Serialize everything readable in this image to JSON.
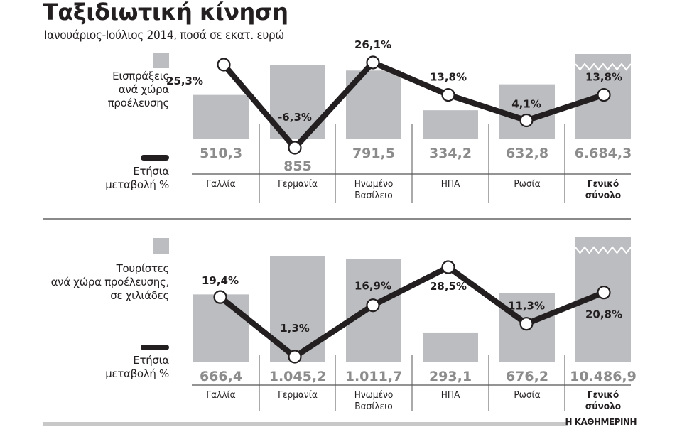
{
  "header": {
    "title": "Ταξιδιωτική κίνηση",
    "subtitle": "Ιανουάριος-Ιούλιος 2014, ποσά σε εκατ. ευρώ"
  },
  "top_chart": {
    "legend_bars": "Εισπράξεις ανά χώρα προέλευσης",
    "legend_bars_lines": [
      "Εισπράξεις",
      "ανά χώρα",
      "προέλευσης"
    ],
    "legend_line_lines": [
      "Ετήσια",
      "μεταβολή %"
    ]
  },
  "bottom_chart": {
    "legend_bars": "Τουρίστες ανά χώρα προέλευσης, σε χιλιάδες",
    "legend_bars_lines": [
      "Τουρίστες",
      "ανά χώρα προέλευσης,",
      "σε χιλιάδες"
    ],
    "legend_line_lines": [
      "Ετήσια",
      "μεταβολή %"
    ]
  },
  "footer": {
    "brand": "Η ΚΑΘΗΜΕΡΙΝΗ"
  },
  "colors": {
    "bar": "#bcbdc0",
    "bar_value_text": "#8c8c8c",
    "line": "#231f20",
    "marker_fill": "#ffffff",
    "text": "#231f20"
  },
  "chart_data": [
    {
      "type": "bar+line",
      "title": "Ταξιδιωτική κίνηση",
      "subtitle": "Ιανουάριος-Ιούλιος 2014, ποσά σε εκατ. ευρώ",
      "categories": [
        "Γαλλία",
        "Γερμανία",
        "Ηνωμένο Βασίλειο",
        "ΗΠΑ",
        "Ρωσία",
        "Γενικό σύνολο"
      ],
      "category_lines": [
        [
          "Γαλλία"
        ],
        [
          "Γερμανία"
        ],
        [
          "Ηνωμένο",
          "Βασίλειο"
        ],
        [
          "ΗΠΑ"
        ],
        [
          "Ρωσία"
        ],
        [
          "Γενικό",
          "σύνολο"
        ]
      ],
      "series": [
        {
          "name": "Εισπράξεις ανά χώρα προέλευσης",
          "kind": "bar",
          "values": [
            510.3,
            855,
            791.5,
            334.2,
            632.8,
            6684.3
          ],
          "labels": [
            "510,3",
            "855",
            "791,5",
            "334,2",
            "632,8",
            "6.684,3"
          ],
          "broken_axis_last": true
        },
        {
          "name": "Ετήσια μεταβολή %",
          "kind": "line",
          "values": [
            25.3,
            -6.3,
            26.1,
            13.8,
            4.1,
            13.8
          ],
          "labels": [
            "25,3%",
            "-6,3%",
            "26,1%",
            "13,8%",
            "4,1%",
            "13,8%"
          ]
        }
      ],
      "xlabel": "",
      "ylabel": "",
      "grid": false,
      "legend_position": "left"
    },
    {
      "type": "bar+line",
      "title": "Τουρίστες ανά χώρα προέλευσης, σε χιλιάδες",
      "categories": [
        "Γαλλία",
        "Γερμανία",
        "Ηνωμένο Βασίλειο",
        "ΗΠΑ",
        "Ρωσία",
        "Γενικό σύνολο"
      ],
      "category_lines": [
        [
          "Γαλλία"
        ],
        [
          "Γερμανία"
        ],
        [
          "Ηνωμένο",
          "Βασίλειο"
        ],
        [
          "ΗΠΑ"
        ],
        [
          "Ρωσία"
        ],
        [
          "Γενικό",
          "σύνολο"
        ]
      ],
      "series": [
        {
          "name": "Τουρίστες ανά χώρα προέλευσης, σε χιλιάδες",
          "kind": "bar",
          "values": [
            666.4,
            1045.2,
            1011.7,
            293.1,
            676.2,
            10486.9
          ],
          "labels": [
            "666,4",
            "1.045,2",
            "1.011,7",
            "293,1",
            "676,2",
            "10.486,9"
          ],
          "broken_axis_last": true
        },
        {
          "name": "Ετήσια μεταβολή %",
          "kind": "line",
          "values": [
            19.4,
            1.3,
            16.9,
            28.5,
            11.3,
            20.8
          ],
          "labels": [
            "19,4%",
            "1,3%",
            "16,9%",
            "28,5%",
            "11,3%",
            "20,8%"
          ]
        }
      ],
      "xlabel": "",
      "ylabel": "",
      "grid": false,
      "legend_position": "left"
    }
  ]
}
